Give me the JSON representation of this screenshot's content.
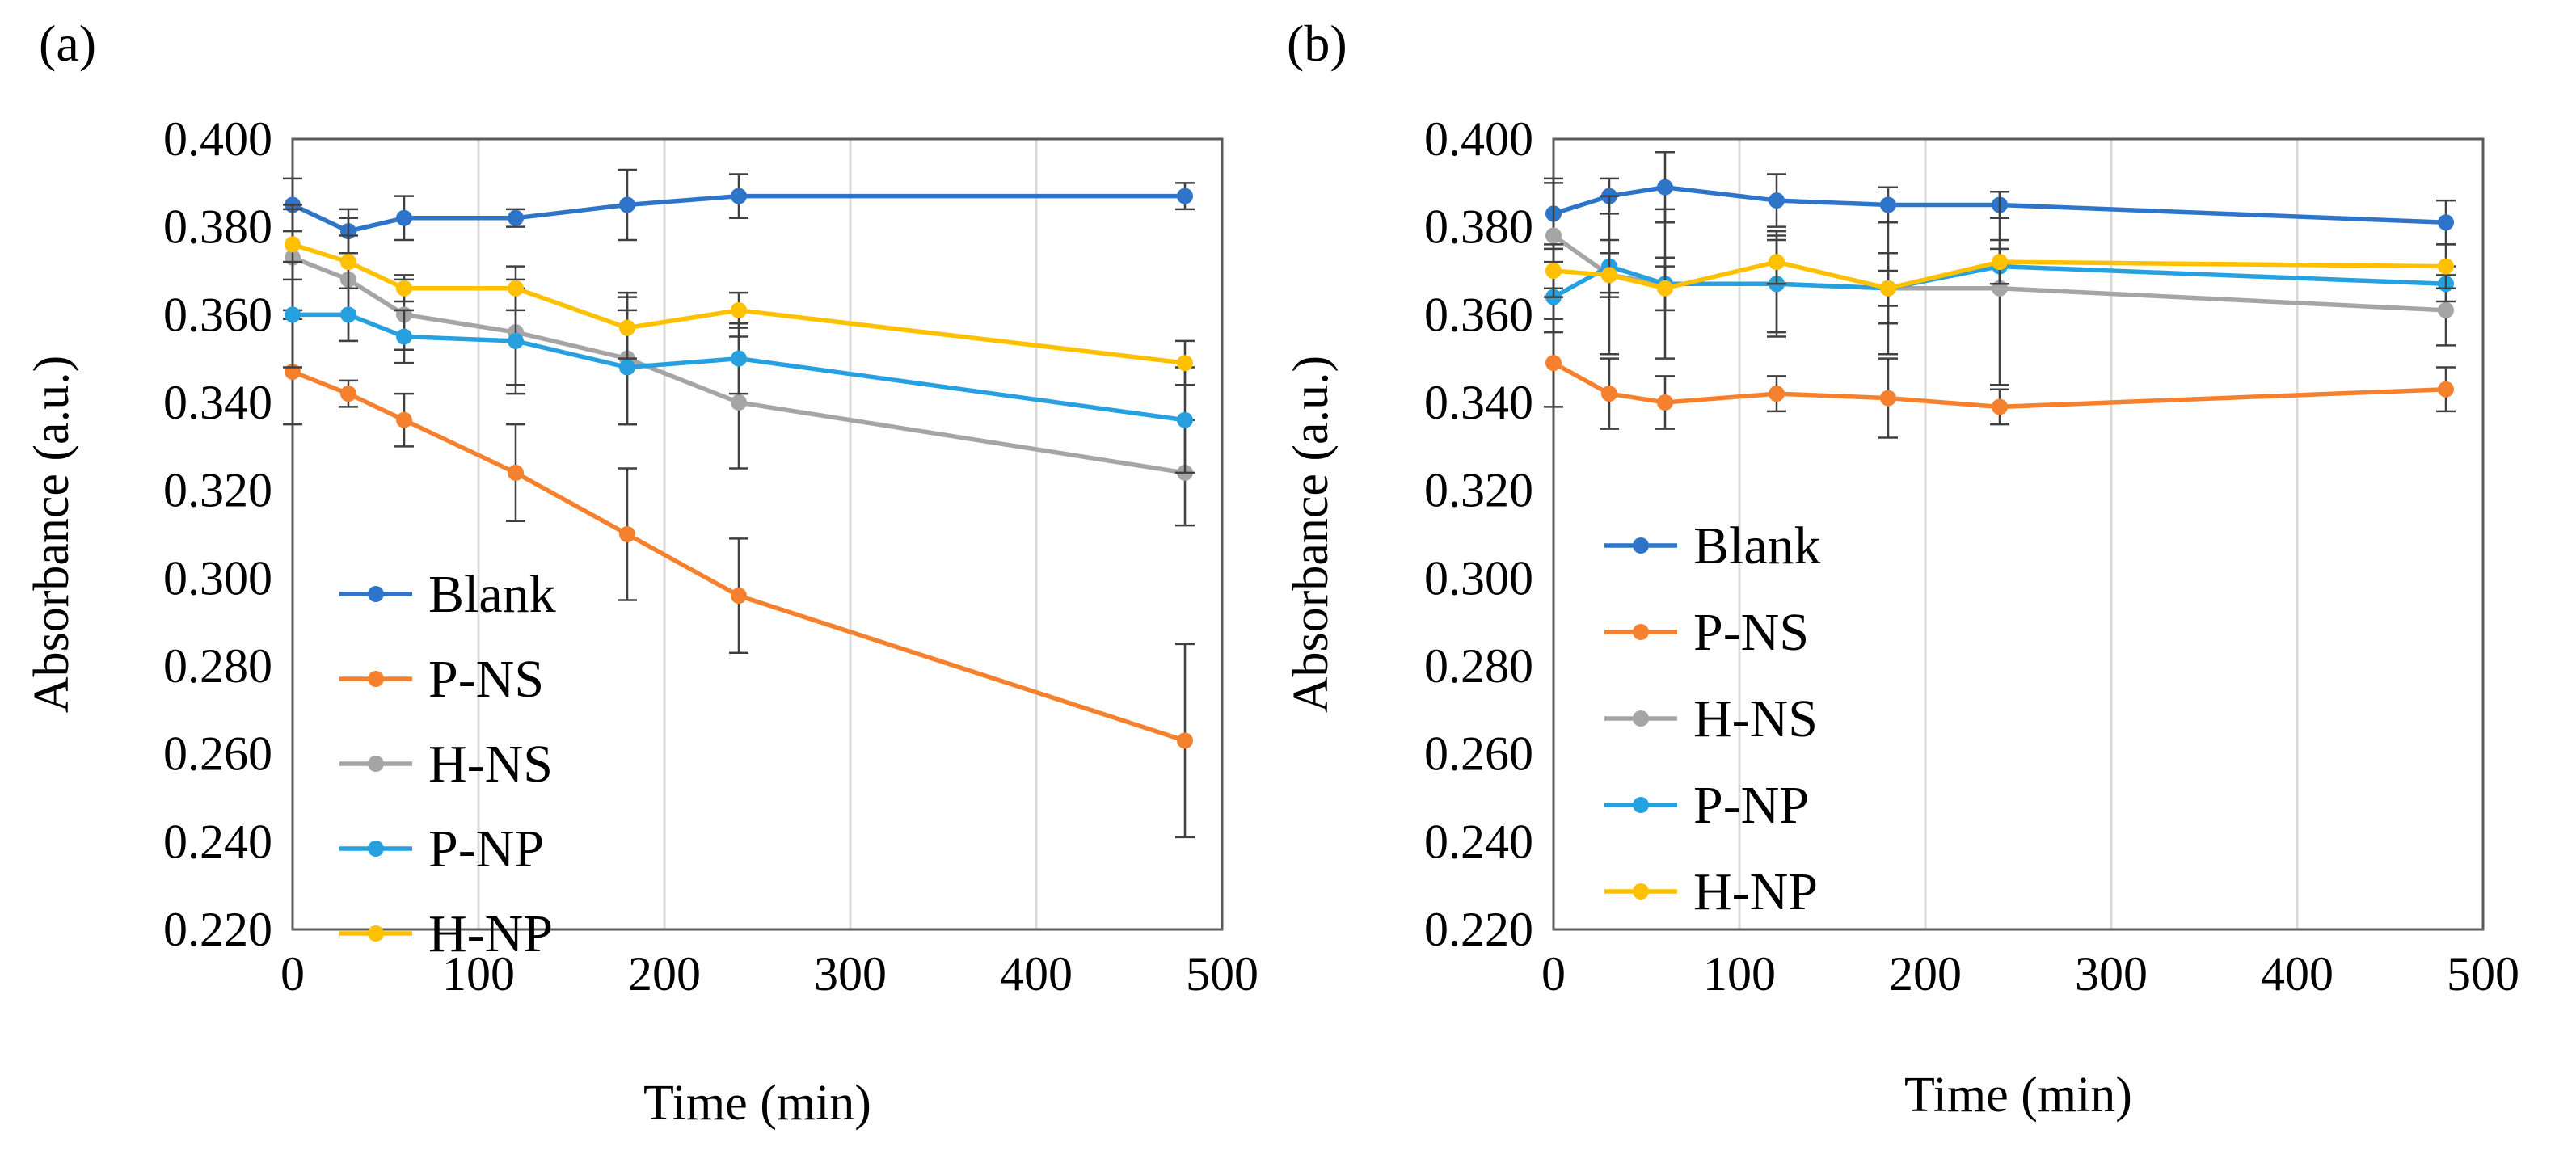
{
  "figure": {
    "colors": {
      "Blank": "#2E75C9",
      "P-NS": "#F5812F",
      "H-NS": "#A5A5A5",
      "P-NP": "#27A0E0",
      "H-NP": "#FFC000"
    }
  },
  "chart_data": [
    {
      "panel": "(a)",
      "type": "line",
      "xlabel": "Time (min)",
      "ylabel": "Absorbance (a.u.)",
      "xlim": [
        0,
        500
      ],
      "ylim": [
        0.22,
        0.4
      ],
      "xticks": [
        "0",
        "100",
        "200",
        "300",
        "400",
        "500"
      ],
      "yticks": [
        "0.400",
        "0.380",
        "0.360",
        "0.340",
        "0.320",
        "0.300",
        "0.280",
        "0.260",
        "0.240",
        "0.220"
      ],
      "x": [
        0,
        30,
        60,
        120,
        180,
        240,
        480
      ],
      "legend": "left",
      "series": [
        {
          "name": "Blank",
          "values": [
            0.385,
            0.379,
            0.382,
            0.382,
            0.385,
            0.387,
            0.387
          ],
          "errors": [
            0.006,
            0.005,
            0.005,
            0.002,
            0.008,
            0.005,
            0.003
          ]
        },
        {
          "name": "P-NS",
          "values": [
            0.347,
            0.342,
            0.336,
            0.324,
            0.31,
            0.296,
            0.263
          ],
          "errors": [
            0.012,
            0.003,
            0.006,
            0.011,
            0.015,
            0.013,
            0.022
          ]
        },
        {
          "name": "H-NS",
          "values": [
            0.373,
            0.368,
            0.36,
            0.356,
            0.35,
            0.34,
            0.324
          ],
          "errors": [
            0.012,
            0.014,
            0.008,
            0.012,
            0.015,
            0.015,
            0.012
          ]
        },
        {
          "name": "P-NP",
          "values": [
            0.36,
            0.36,
            0.355,
            0.354,
            0.348,
            0.35,
            0.336
          ],
          "errors": [
            0.012,
            0.006,
            0.006,
            0.012,
            0.013,
            0.008,
            0.012
          ]
        },
        {
          "name": "H-NP",
          "values": [
            0.376,
            0.372,
            0.366,
            0.366,
            0.357,
            0.361,
            0.349
          ],
          "errors": [
            0.008,
            0.006,
            0.003,
            0.005,
            0.007,
            0.004,
            0.005
          ]
        }
      ]
    },
    {
      "panel": "(b)",
      "type": "line",
      "xlabel": "Time (min)",
      "ylabel": "Absorbance (a.u.)",
      "xlim": [
        0,
        500
      ],
      "ylim": [
        0.22,
        0.4
      ],
      "xticks": [
        "0",
        "100",
        "200",
        "300",
        "400",
        "500"
      ],
      "yticks": [
        "0.400",
        "0.380",
        "0.360",
        "0.340",
        "0.320",
        "0.300",
        "0.280",
        "0.260",
        "0.240",
        "0.220"
      ],
      "x": [
        0,
        30,
        60,
        120,
        180,
        240,
        480
      ],
      "legend": "left",
      "series": [
        {
          "name": "Blank",
          "values": [
            0.383,
            0.387,
            0.389,
            0.386,
            0.385,
            0.385,
            0.381
          ],
          "errors": [
            0.008,
            0.004,
            0.008,
            0.006,
            0.004,
            0.003,
            0.005
          ]
        },
        {
          "name": "P-NS",
          "values": [
            0.349,
            0.342,
            0.34,
            0.342,
            0.341,
            0.339,
            0.343
          ],
          "errors": [
            0.01,
            0.008,
            0.006,
            0.004,
            0.009,
            0.004,
            0.005
          ]
        },
        {
          "name": "H-NS",
          "values": [
            0.378,
            0.369,
            0.367,
            0.367,
            0.366,
            0.366,
            0.361
          ],
          "errors": [
            0.012,
            0.018,
            0.017,
            0.011,
            0.015,
            0.022,
            0.008
          ]
        },
        {
          "name": "P-NP",
          "values": [
            0.364,
            0.371,
            0.367,
            0.367,
            0.366,
            0.371,
            0.367
          ],
          "errors": [
            0.008,
            0.006,
            0.006,
            0.012,
            0.008,
            0.004,
            0.004
          ]
        },
        {
          "name": "H-NP",
          "values": [
            0.37,
            0.369,
            0.366,
            0.372,
            0.366,
            0.372,
            0.371
          ],
          "errors": [
            0.006,
            0.005,
            0.005,
            0.005,
            0.004,
            0.005,
            0.005
          ]
        }
      ]
    }
  ]
}
